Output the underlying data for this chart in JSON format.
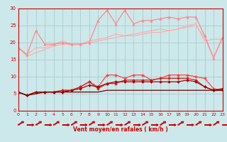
{
  "xlabel": "Vent moyen/en rafales ( km/h )",
  "xlim": [
    0,
    23
  ],
  "ylim": [
    0,
    30
  ],
  "xticks": [
    0,
    1,
    2,
    3,
    4,
    5,
    6,
    7,
    8,
    9,
    10,
    11,
    12,
    13,
    14,
    15,
    16,
    17,
    18,
    19,
    20,
    21,
    22,
    23
  ],
  "yticks": [
    0,
    5,
    10,
    15,
    20,
    25,
    30
  ],
  "background_color": "#cce8ea",
  "grid_color": "#aacccc",
  "series": [
    {
      "color": "#ffaaaa",
      "linewidth": 0.8,
      "marker": null,
      "data": [
        [
          0,
          18.5
        ],
        [
          1,
          16.5
        ],
        [
          2,
          18.5
        ],
        [
          3,
          18.5
        ],
        [
          4,
          19.5
        ],
        [
          5,
          20.5
        ],
        [
          6,
          19.5
        ],
        [
          7,
          19.5
        ],
        [
          8,
          20.5
        ],
        [
          9,
          21.0
        ],
        [
          10,
          21.5
        ],
        [
          11,
          22.5
        ],
        [
          12,
          22.0
        ],
        [
          13,
          22.5
        ],
        [
          14,
          23.0
        ],
        [
          15,
          23.5
        ],
        [
          16,
          24.0
        ],
        [
          17,
          23.5
        ],
        [
          18,
          24.0
        ],
        [
          19,
          25.0
        ],
        [
          20,
          25.5
        ],
        [
          21,
          20.5
        ],
        [
          22,
          21.0
        ],
        [
          23,
          21.0
        ]
      ]
    },
    {
      "color": "#ffaaaa",
      "linewidth": 0.8,
      "marker": null,
      "data": [
        [
          0,
          18.5
        ],
        [
          1,
          16.0
        ],
        [
          2,
          17.0
        ],
        [
          3,
          18.0
        ],
        [
          4,
          19.0
        ],
        [
          5,
          19.5
        ],
        [
          6,
          19.5
        ],
        [
          7,
          19.5
        ],
        [
          8,
          20.0
        ],
        [
          9,
          20.5
        ],
        [
          10,
          21.0
        ],
        [
          11,
          21.5
        ],
        [
          12,
          22.0
        ],
        [
          13,
          22.0
        ],
        [
          14,
          22.5
        ],
        [
          15,
          23.0
        ],
        [
          16,
          23.0
        ],
        [
          17,
          23.5
        ],
        [
          18,
          24.0
        ],
        [
          19,
          24.5
        ],
        [
          20,
          25.0
        ],
        [
          21,
          21.5
        ],
        [
          22,
          15.5
        ],
        [
          23,
          21.5
        ]
      ]
    },
    {
      "color": "#ff8888",
      "linewidth": 0.9,
      "marker": "^",
      "markersize": 2.5,
      "data": [
        [
          0,
          18.5
        ],
        [
          1,
          16.5
        ],
        [
          2,
          23.5
        ],
        [
          3,
          19.5
        ],
        [
          4,
          19.5
        ],
        [
          5,
          20.0
        ],
        [
          6,
          19.5
        ],
        [
          7,
          19.5
        ],
        [
          8,
          20.0
        ],
        [
          9,
          26.5
        ],
        [
          10,
          29.5
        ],
        [
          11,
          25.5
        ],
        [
          12,
          29.5
        ],
        [
          13,
          25.5
        ],
        [
          14,
          26.5
        ],
        [
          15,
          26.5
        ],
        [
          16,
          27.0
        ],
        [
          17,
          27.5
        ],
        [
          18,
          27.0
        ],
        [
          19,
          27.5
        ],
        [
          20,
          27.5
        ],
        [
          21,
          22.0
        ],
        [
          22,
          15.5
        ],
        [
          23,
          21.5
        ]
      ]
    },
    {
      "color": "#ff4444",
      "linewidth": 0.9,
      "marker": "D",
      "markersize": 2.0,
      "data": [
        [
          0,
          5.5
        ],
        [
          1,
          4.5
        ],
        [
          2,
          5.5
        ],
        [
          3,
          5.5
        ],
        [
          4,
          5.5
        ],
        [
          5,
          6.0
        ],
        [
          6,
          6.0
        ],
        [
          7,
          7.0
        ],
        [
          8,
          8.5
        ],
        [
          9,
          7.0
        ],
        [
          10,
          10.5
        ],
        [
          11,
          10.5
        ],
        [
          12,
          9.5
        ],
        [
          13,
          10.5
        ],
        [
          14,
          10.5
        ],
        [
          15,
          9.0
        ],
        [
          16,
          9.5
        ],
        [
          17,
          10.5
        ],
        [
          18,
          10.5
        ],
        [
          19,
          10.5
        ],
        [
          20,
          10.0
        ],
        [
          21,
          9.5
        ],
        [
          22,
          6.5
        ],
        [
          23,
          6.0
        ]
      ]
    },
    {
      "color": "#cc2222",
      "linewidth": 0.9,
      "marker": "D",
      "markersize": 2.0,
      "data": [
        [
          0,
          5.5
        ],
        [
          1,
          4.5
        ],
        [
          2,
          5.5
        ],
        [
          3,
          5.5
        ],
        [
          4,
          5.5
        ],
        [
          5,
          6.0
        ],
        [
          6,
          6.0
        ],
        [
          7,
          7.0
        ],
        [
          8,
          8.5
        ],
        [
          9,
          6.5
        ],
        [
          10,
          8.0
        ],
        [
          11,
          8.0
        ],
        [
          12,
          9.0
        ],
        [
          13,
          9.0
        ],
        [
          14,
          9.0
        ],
        [
          15,
          9.0
        ],
        [
          16,
          9.5
        ],
        [
          17,
          9.5
        ],
        [
          18,
          9.5
        ],
        [
          19,
          9.5
        ],
        [
          20,
          9.0
        ],
        [
          21,
          7.0
        ],
        [
          22,
          6.0
        ],
        [
          23,
          6.0
        ]
      ]
    },
    {
      "color": "#aa0000",
      "linewidth": 0.9,
      "marker": "D",
      "markersize": 2.0,
      "data": [
        [
          0,
          5.5
        ],
        [
          1,
          4.5
        ],
        [
          2,
          5.5
        ],
        [
          3,
          5.5
        ],
        [
          4,
          5.5
        ],
        [
          5,
          5.5
        ],
        [
          6,
          6.0
        ],
        [
          7,
          6.5
        ],
        [
          8,
          7.5
        ],
        [
          9,
          7.0
        ],
        [
          10,
          8.0
        ],
        [
          11,
          8.5
        ],
        [
          12,
          8.5
        ],
        [
          13,
          8.5
        ],
        [
          14,
          8.5
        ],
        [
          15,
          8.5
        ],
        [
          16,
          8.5
        ],
        [
          17,
          8.5
        ],
        [
          18,
          8.5
        ],
        [
          19,
          9.0
        ],
        [
          20,
          8.5
        ],
        [
          21,
          7.0
        ],
        [
          22,
          6.0
        ],
        [
          23,
          6.5
        ]
      ]
    },
    {
      "color": "#660000",
      "linewidth": 0.9,
      "marker": null,
      "data": [
        [
          0,
          5.5
        ],
        [
          1,
          4.5
        ],
        [
          2,
          5.0
        ],
        [
          3,
          5.5
        ],
        [
          4,
          5.5
        ],
        [
          5,
          5.5
        ],
        [
          6,
          5.5
        ],
        [
          7,
          5.5
        ],
        [
          8,
          5.5
        ],
        [
          9,
          5.5
        ],
        [
          10,
          6.0
        ],
        [
          11,
          6.0
        ],
        [
          12,
          6.0
        ],
        [
          13,
          6.0
        ],
        [
          14,
          6.0
        ],
        [
          15,
          6.0
        ],
        [
          16,
          6.0
        ],
        [
          17,
          6.0
        ],
        [
          18,
          6.0
        ],
        [
          19,
          6.0
        ],
        [
          20,
          6.0
        ],
        [
          21,
          6.0
        ],
        [
          22,
          6.0
        ],
        [
          23,
          6.0
        ]
      ]
    }
  ],
  "wind_arrows": [
    0,
    1,
    2,
    3,
    4,
    5,
    6,
    7,
    8,
    9,
    10,
    11,
    12,
    13,
    14,
    15,
    16,
    17,
    18,
    19,
    20,
    21,
    22,
    23
  ],
  "arrow_color": "#cc0000"
}
